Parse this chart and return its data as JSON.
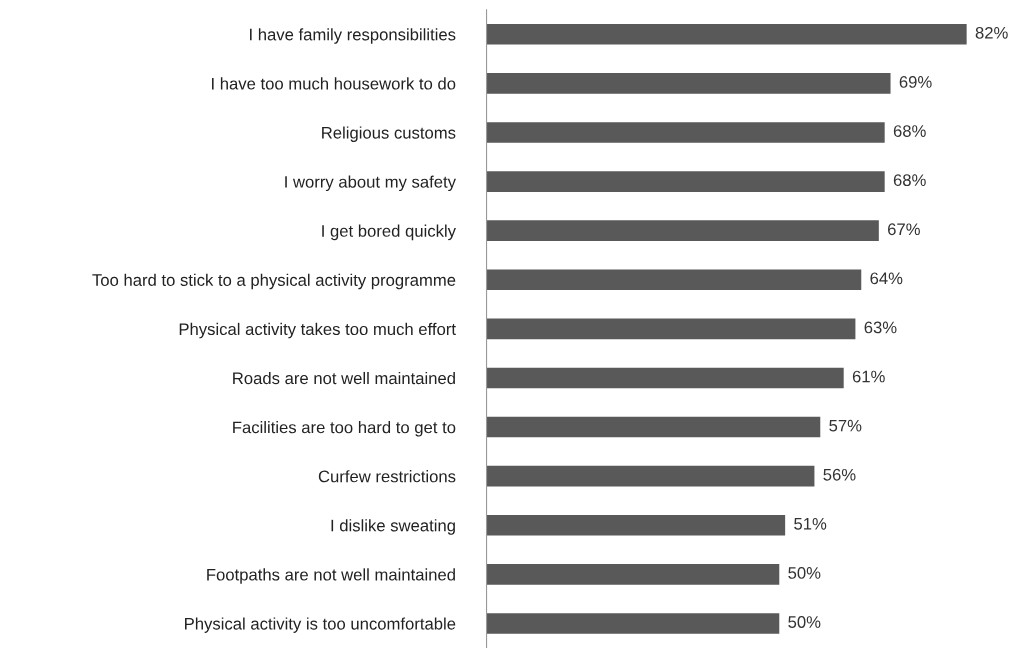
{
  "chart_data": {
    "type": "bar",
    "orientation": "horizontal",
    "categories": [
      "I have family responsibilities",
      "I have too much housework to do",
      "Religious customs",
      "I worry about my safety",
      "I get bored quickly",
      "Too hard to stick to a physical activity programme",
      "Physical activity takes too much effort",
      "Roads are not well maintained",
      "Facilities are too hard to get to",
      "Curfew restrictions",
      "I dislike sweating",
      "Footpaths are not well maintained",
      "Physical activity is too uncomfortable"
    ],
    "values": [
      82,
      69,
      68,
      68,
      67,
      64,
      63,
      61,
      57,
      56,
      51,
      50,
      50
    ],
    "value_labels": [
      "82%",
      "69%",
      "68%",
      "68%",
      "67%",
      "64%",
      "63%",
      "61%",
      "57%",
      "56%",
      "51%",
      "50%",
      "50%"
    ],
    "color": "#595959",
    "tick_labels": "y",
    "grid": false,
    "legend": false
  }
}
